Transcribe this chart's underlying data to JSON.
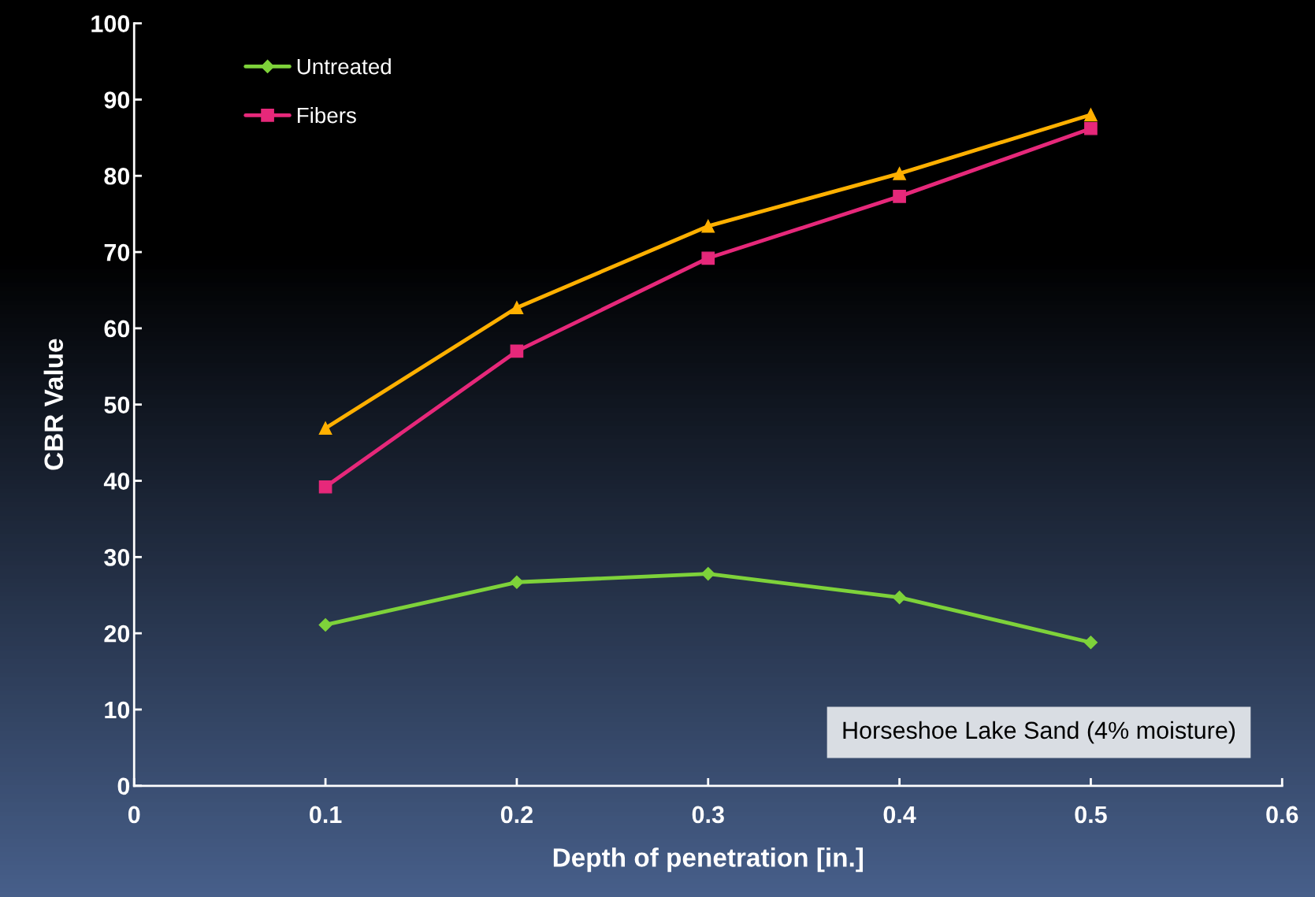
{
  "chart_data": {
    "type": "line",
    "xlabel": "Depth of penetration [in.]",
    "ylabel": "CBR Value",
    "x": [
      0.1,
      0.2,
      0.3,
      0.4,
      0.5
    ],
    "series": [
      {
        "name": "Untreated",
        "color": "#7ed23a",
        "marker": "diamond",
        "values": [
          21.1,
          26.7,
          27.8,
          24.7,
          18.8
        ]
      },
      {
        "name": "Fibers",
        "color": "#e6287a",
        "marker": "square",
        "values": [
          39.2,
          57.0,
          69.2,
          77.3,
          86.2
        ]
      },
      {
        "color": "#ffb000",
        "marker": "triangle",
        "values": [
          46.9,
          62.7,
          73.4,
          80.3,
          88.0
        ]
      }
    ],
    "xlim": [
      0,
      0.6
    ],
    "xticks": [
      0,
      0.1,
      0.2,
      0.3,
      0.4,
      0.5,
      0.6
    ],
    "ylim": [
      0,
      100
    ],
    "yticks": [
      0,
      10,
      20,
      30,
      40,
      50,
      60,
      70,
      80,
      90,
      100
    ],
    "grid": false,
    "legend": "top left",
    "annotations": [
      "Horseshoe Lake Sand (4% moisture)"
    ]
  }
}
